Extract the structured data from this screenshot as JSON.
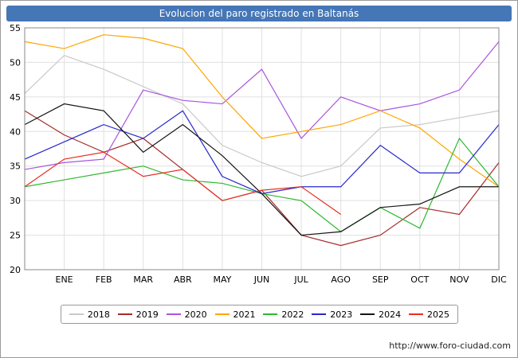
{
  "title": "Evolucion del paro registrado en Baltanás",
  "footer": {
    "url_label": "http://www.foro-ciudad.com"
  },
  "colors": {
    "title_bar": "#4576b6",
    "grid": "#e0e0e0",
    "axis": "#8a8a8a",
    "text": "#000000",
    "legend_border": "#999999"
  },
  "chart_data": {
    "type": "line",
    "title": "Evolucion del paro registrado en Baltanás",
    "note": "first value of each series sits on the left axis edge, before the ENE tick",
    "categories": [
      "",
      "ENE",
      "FEB",
      "MAR",
      "ABR",
      "MAY",
      "JUN",
      "JUL",
      "AGO",
      "SEP",
      "OCT",
      "NOV",
      "DIC"
    ],
    "ylim": [
      20,
      55
    ],
    "y_ticks": [
      20,
      25,
      30,
      35,
      40,
      45,
      50,
      55
    ],
    "grid": true,
    "legend_position": "bottom",
    "series": [
      {
        "name": "2018",
        "color": "#c9c9c9",
        "values": [
          45.5,
          51,
          49,
          46.5,
          44,
          38,
          35.5,
          33.5,
          35,
          40.5,
          41,
          42,
          43
        ]
      },
      {
        "name": "2019",
        "color": "#a52a2a",
        "values": [
          43,
          39.5,
          37,
          39,
          34.5,
          30,
          31.5,
          25,
          23.5,
          25,
          29,
          28,
          35.5
        ]
      },
      {
        "name": "2020",
        "color": "#aa55dd",
        "values": [
          34.5,
          35.5,
          36,
          46,
          44.5,
          44,
          49,
          39,
          45,
          43,
          44,
          46,
          53
        ]
      },
      {
        "name": "2021",
        "color": "#ffa500",
        "values": [
          53,
          52,
          54,
          53.5,
          52,
          45,
          39,
          40,
          41,
          43,
          40.5,
          36,
          32
        ]
      },
      {
        "name": "2022",
        "color": "#2eb82e",
        "values": [
          32,
          33,
          34,
          35,
          33,
          32.5,
          31,
          30,
          25.5,
          29,
          26,
          39,
          32
        ]
      },
      {
        "name": "2023",
        "color": "#2828cc",
        "values": [
          36,
          38.5,
          41,
          39,
          43,
          33.5,
          31,
          32,
          32,
          38,
          34,
          34,
          41
        ]
      },
      {
        "name": "2024",
        "color": "#151515",
        "values": [
          41,
          44,
          43,
          37,
          41,
          36.5,
          31,
          25,
          25.5,
          29,
          29.5,
          32,
          32
        ]
      },
      {
        "name": "2025",
        "color": "#e62e21",
        "values": [
          32,
          36,
          37,
          33.5,
          34.5,
          30,
          31.5,
          32,
          28
        ]
      }
    ]
  }
}
